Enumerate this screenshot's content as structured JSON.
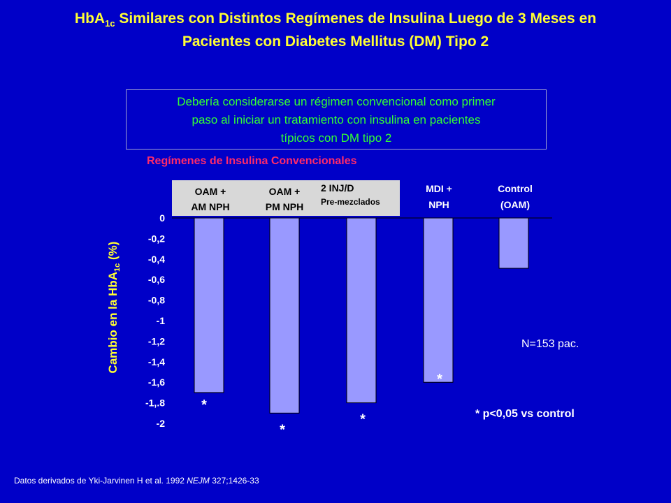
{
  "slide": {
    "title_prefix": "HbA",
    "title_sub": "1c",
    "title_line1_rest": " Similares con Distintos Regímenes de Insulina Luego de 3 Meses en",
    "title_line2": "Pacientes con Diabetes Mellitus (DM) Tipo 2",
    "note_line1": "Debería considerarse un régimen convencional como primer",
    "note_line2": "paso al iniciar un tratamiento con insulina en pacientes",
    "note_line3": "típicos con DM tipo 2",
    "regimes_label": "Regímenes de Insulina Convencionales",
    "ylabel_prefix": "Cambio en la HbA",
    "ylabel_sub": "1c",
    "ylabel_suffix": " (%)",
    "n_label": "N=153 pac.",
    "p_label": "* p<0,05 vs control",
    "source_prefix": "Datos derivados de Yki-Jarvinen H et al. 1992 ",
    "source_journal": "NEJM",
    "source_suffix": " 327;1426-33"
  },
  "categories": [
    {
      "line1": "OAM +",
      "line2": "AM NPH"
    },
    {
      "line1": "OAM +",
      "line2": "PM NPH"
    },
    {
      "line1": "2 INJ/D",
      "line2": "Pre-mezclados"
    },
    {
      "line1": "MDI +",
      "line2": "NPH"
    },
    {
      "line1": "Control",
      "line2": "(OAM)"
    }
  ],
  "colors": {
    "background": "#0000c8",
    "bar": "#9999ff",
    "title": "#ffff33",
    "note": "#33ff33",
    "regimes": "#ff2a6a"
  },
  "chart_data": {
    "type": "bar",
    "categories": [
      "OAM + AM NPH",
      "OAM + PM NPH",
      "2 INJ/D Pre-mezclados",
      "MDI + NPH",
      "Control (OAM)"
    ],
    "values": [
      -1.7,
      -1.9,
      -1.8,
      -1.6,
      -0.49
    ],
    "significant": [
      true,
      true,
      true,
      true,
      false
    ],
    "ylabel": "Cambio en la HbA1c (%)",
    "ylim": [
      -2,
      0
    ],
    "yticks": [
      "0",
      "-0,2",
      "-0,4",
      "-0,6",
      "-0,8",
      "-1",
      "-1,2",
      "-1,4",
      "-1,6",
      "-1,.8",
      "-2"
    ],
    "marker": "*"
  }
}
